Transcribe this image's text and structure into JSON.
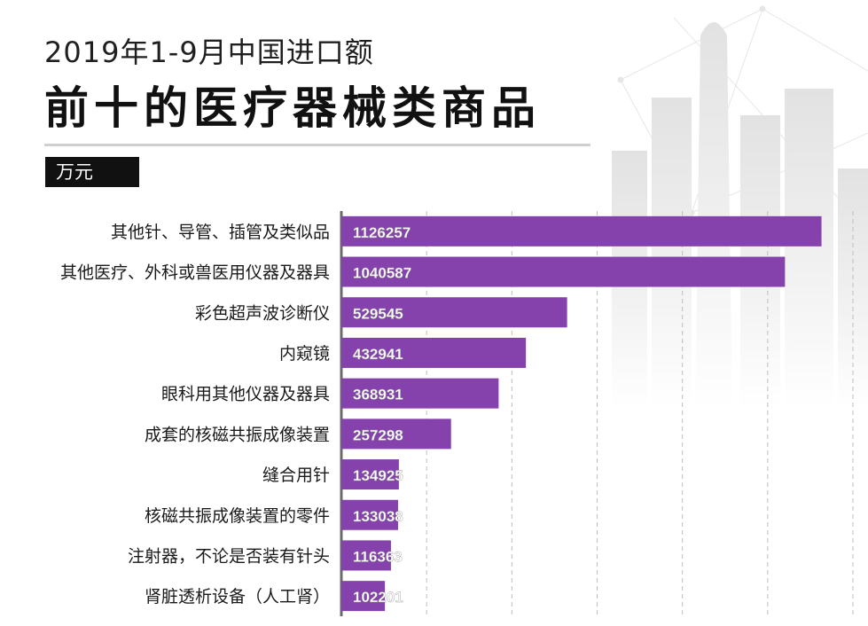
{
  "header": {
    "title_line1": "2019年1-9月中国进口额",
    "title_line2": "前十的医疗器械类商品",
    "unit": "万元"
  },
  "colors": {
    "bar": "#8541ac",
    "bar_label": "#ffffff",
    "category_label": "#1a1a1a",
    "axis": "#6b6b6b",
    "grid": "#bdbdbd"
  },
  "chart_data": {
    "type": "bar",
    "orientation": "horizontal",
    "categories": [
      "其他针、导管、插管及类似品",
      "其他医疗、外科或兽医用仪器及器具",
      "彩色超声波诊断仪",
      "内窥镜",
      "眼科用其他仪器及器具",
      "成套的核磁共振成像装置",
      "缝合用针",
      "核磁共振成像装置的零件",
      "注射器，不论是否装有针头",
      "肾脏透析设备（人工肾）"
    ],
    "values": [
      1126257,
      1040587,
      529545,
      432941,
      368931,
      257298,
      134925,
      133038,
      116363,
      102201
    ],
    "title": "",
    "xlabel": "",
    "ylabel": "",
    "xlim": [
      0,
      1200000
    ],
    "grid": true,
    "legend": "none"
  }
}
